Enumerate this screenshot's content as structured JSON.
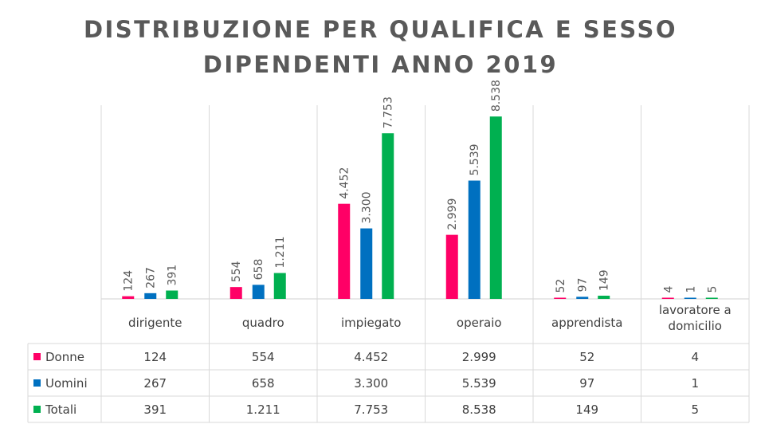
{
  "title_line1": "DISTRIBUZIONE PER QUALIFICA E SESSO",
  "title_line2": "DIPENDENTI ANNO 2019",
  "chart_data": {
    "type": "bar",
    "title": "DISTRIBUZIONE PER QUALIFICA E SESSO DIPENDENTI ANNO 2019",
    "categories": [
      "dirigente",
      "quadro",
      "impiegato",
      "operaio",
      "apprendista",
      "lavoratore a domicilio"
    ],
    "category_lines": [
      [
        "dirigente"
      ],
      [
        "quadro"
      ],
      [
        "impiegato"
      ],
      [
        "operaio"
      ],
      [
        "apprendista"
      ],
      [
        "lavoratore a",
        "domicilio"
      ]
    ],
    "series": [
      {
        "name": "Donne",
        "color": "#ff0066",
        "values": [
          124,
          554,
          4452,
          2999,
          52,
          4
        ],
        "labels": [
          "124",
          "554",
          "4.452",
          "2.999",
          "52",
          "4"
        ]
      },
      {
        "name": "Uomini",
        "color": "#0070c0",
        "values": [
          267,
          658,
          3300,
          5539,
          97,
          1
        ],
        "labels": [
          "267",
          "658",
          "3.300",
          "5.539",
          "97",
          "1"
        ]
      },
      {
        "name": "Totali",
        "color": "#00b050",
        "values": [
          391,
          1211,
          7753,
          8538,
          149,
          5
        ],
        "labels": [
          "391",
          "1.211",
          "7.753",
          "8.538",
          "149",
          "5"
        ]
      }
    ],
    "ylim": [
      0,
      9000
    ],
    "xlabel": "",
    "ylabel": "",
    "legend": "data-table",
    "grid": false
  }
}
